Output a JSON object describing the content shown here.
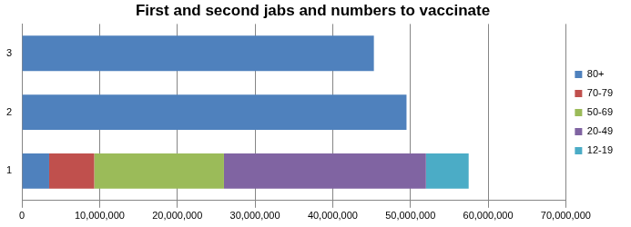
{
  "chart_data": {
    "type": "bar",
    "orientation": "horizontal",
    "stacked": true,
    "title": "First and second jabs and numbers to vaccinate",
    "categories": [
      "1",
      "2",
      "3"
    ],
    "series": [
      {
        "name": "80+",
        "color": "#4f81bd",
        "values": [
          3500000,
          49500000,
          45300000
        ]
      },
      {
        "name": "70-79",
        "color": "#c0504d",
        "values": [
          5800000,
          null,
          null
        ]
      },
      {
        "name": "50-69",
        "color": "#9bbb59",
        "values": [
          16700000,
          null,
          null
        ]
      },
      {
        "name": "20-49",
        "color": "#8064a2",
        "values": [
          26000000,
          null,
          null
        ]
      },
      {
        "name": "12-19",
        "color": "#4bacc6",
        "values": [
          5500000,
          null,
          null
        ]
      }
    ],
    "xlim": [
      0,
      70000000
    ],
    "xticks": [
      0,
      {
        "value": 10000000,
        "label": "10,000,000"
      },
      {
        "value": 20000000,
        "label": "20,000,000"
      },
      {
        "value": 30000000,
        "label": "30,000,000"
      },
      {
        "value": 40000000,
        "label": "40,000,000"
      },
      {
        "value": 50000000,
        "label": "50,000,000"
      },
      {
        "value": 60000000,
        "label": "60,000,000"
      },
      {
        "value": 70000000,
        "label": "70,000,000"
      }
    ],
    "grid": true,
    "legend": "right"
  }
}
